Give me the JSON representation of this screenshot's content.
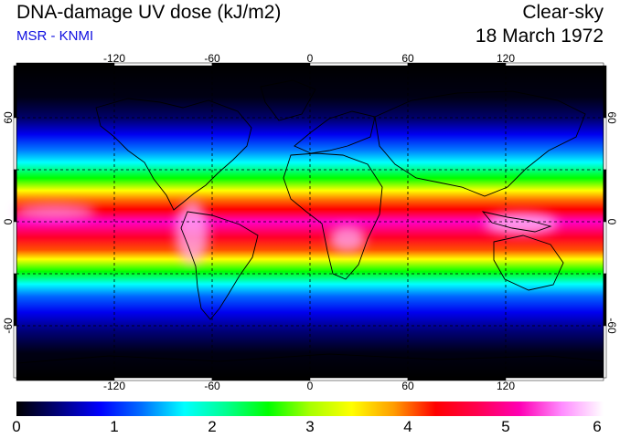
{
  "header": {
    "title": "DNA-damage UV dose (kJ/m2)",
    "subtitle": "MSR - KNMI",
    "condition": "Clear-sky",
    "date": "18 March 1972"
  },
  "map": {
    "lon_ticks": [
      "-120",
      "-60",
      "0",
      "60",
      "120"
    ],
    "lat_ticks": [
      "60",
      "0",
      "-60"
    ],
    "lon_range": [
      -180,
      180
    ],
    "lat_range": [
      -90,
      90
    ],
    "grid": true
  },
  "colorbar": {
    "min": 0,
    "max": 6,
    "labels": [
      "0",
      "1",
      "2",
      "3",
      "4",
      "5",
      "6"
    ],
    "colors": [
      "#000000",
      "#00007a",
      "#0000ff",
      "#0070ff",
      "#00ffff",
      "#00ff90",
      "#00ff00",
      "#a8ff00",
      "#ffff00",
      "#ff9c00",
      "#ff0000",
      "#ff0050",
      "#ff00b4",
      "#ff8cff",
      "#ffffff"
    ]
  }
}
